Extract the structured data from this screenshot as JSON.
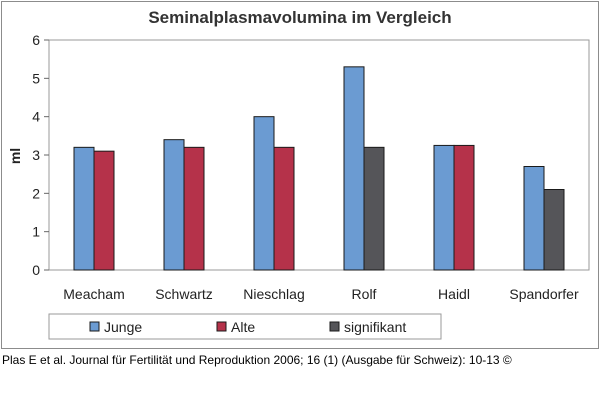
{
  "chart_data": {
    "type": "bar",
    "title": "Seminalplasmavolumina im Vergleich",
    "xlabel": "",
    "ylabel": "ml",
    "ylim": [
      0,
      6
    ],
    "yticks": [
      "0",
      "1",
      "2",
      "3",
      "4",
      "5",
      "6"
    ],
    "grid": false,
    "legend_position": "bottom",
    "categories": [
      "Meacham",
      "Schwartz",
      "Nieschlag",
      "Rolf",
      "Haidl",
      "Spandorfer"
    ],
    "series": [
      {
        "name": "Junge",
        "color": "#6b9bd2",
        "values": [
          3.2,
          3.4,
          4.0,
          5.3,
          3.25,
          2.7
        ]
      },
      {
        "name": "Alte",
        "color": "#b5324a",
        "values": [
          3.1,
          3.2,
          3.2,
          3.2,
          3.25,
          2.1
        ],
        "significant": [
          false,
          false,
          false,
          true,
          false,
          true
        ]
      }
    ],
    "legend": [
      {
        "name": "Junge",
        "color": "#6b9bd2"
      },
      {
        "name": "Alte",
        "color": "#b5324a"
      },
      {
        "name": "signifikant",
        "color": "#555559"
      }
    ]
  },
  "citation": "Plas E et al. Journal für Fertilität und Reproduktion 2006; 16 (1) (Ausgabe für Schweiz): 10-13 ©"
}
